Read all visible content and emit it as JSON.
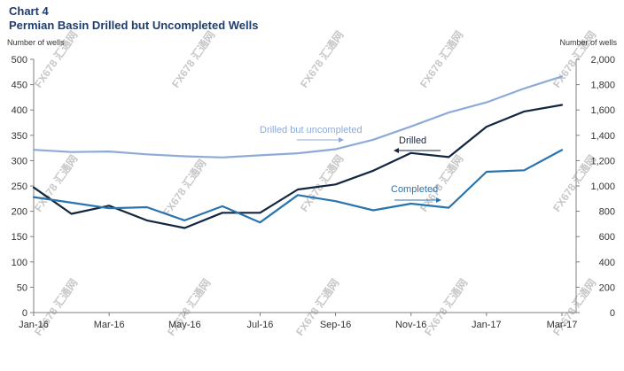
{
  "header": {
    "chart_label": "Chart 4",
    "title": "Permian Basin Drilled but Uncompleted Wells"
  },
  "chart_data": {
    "type": "line",
    "title": "Permian Basin Drilled but Uncompleted Wells",
    "x": [
      "Jan-16",
      "Feb-16",
      "Mar-16",
      "Apr-16",
      "May-16",
      "Jun-16",
      "Jul-16",
      "Aug-16",
      "Sep-16",
      "Oct-16",
      "Nov-16",
      "Dec-16",
      "Jan-17",
      "Feb-17",
      "Mar-17"
    ],
    "tick_labels": [
      "Jan-16",
      "Mar-16",
      "May-16",
      "Jul-16",
      "Sep-16",
      "Nov-16",
      "Jan-17",
      "Mar-17"
    ],
    "ylabel_left": "Number of wells",
    "ylabel_right": "Number of wells",
    "ylim_left": [
      0,
      500
    ],
    "ylim_right": [
      0,
      2000
    ],
    "yticks_left": [
      "0",
      "50",
      "100",
      "150",
      "200",
      "250",
      "300",
      "350",
      "400",
      "450",
      "500"
    ],
    "yticks_right": [
      "0",
      "200",
      "400",
      "600",
      "800",
      "1,000",
      "1,200",
      "1,400",
      "1,600",
      "1,800",
      "2,000"
    ],
    "grid": false,
    "series": [
      {
        "name": "Drilled",
        "axis": "left",
        "color": "#13263f",
        "values": [
          247,
          195,
          211,
          182,
          167,
          197,
          197,
          243,
          253,
          280,
          315,
          307,
          367,
          397,
          410
        ]
      },
      {
        "name": "Completed",
        "axis": "left",
        "color": "#2a74ae",
        "values": [
          228,
          217,
          206,
          208,
          182,
          210,
          178,
          232,
          220,
          202,
          215,
          207,
          278,
          281,
          321
        ]
      },
      {
        "name": "Drilled but uncompleted",
        "axis": "right",
        "color": "#8eaad9",
        "values": [
          1285,
          1268,
          1272,
          1250,
          1234,
          1225,
          1242,
          1258,
          1290,
          1365,
          1470,
          1580,
          1660,
          1770,
          1865
        ]
      }
    ],
    "annotations": [
      "Drilled but uncompleted",
      "Drilled",
      "Completed"
    ]
  },
  "watermark": {
    "text": "FX678 汇通网"
  }
}
